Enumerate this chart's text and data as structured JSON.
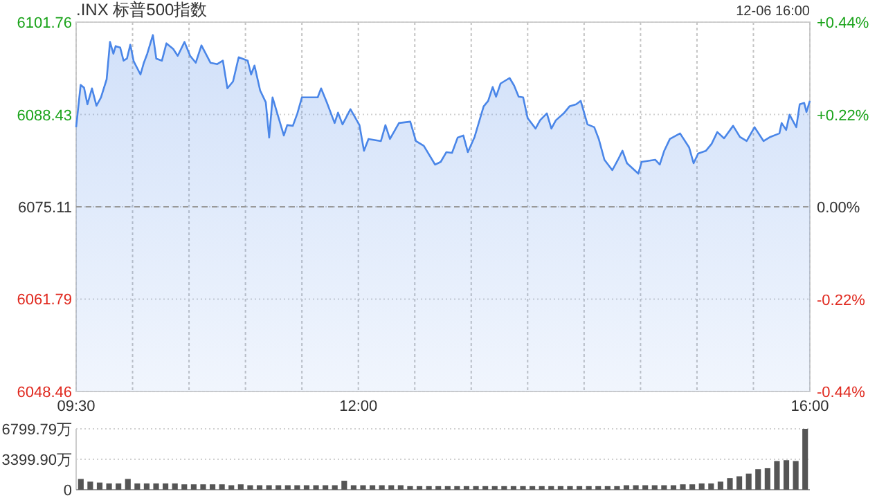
{
  "chart_data": [
    {
      "type": "area",
      "title": ".INX 标普500指数",
      "subtitle": "12-06 16:00",
      "x": [
        9.5,
        9.54,
        9.57,
        9.6,
        9.64,
        9.68,
        9.72,
        9.77,
        9.8,
        9.83,
        9.85,
        9.89,
        9.92,
        9.95,
        9.98,
        10.01,
        10.07,
        10.1,
        10.13,
        10.18,
        10.21,
        10.26,
        10.3,
        10.36,
        10.4,
        10.46,
        10.51,
        10.56,
        10.61,
        10.69,
        10.75,
        10.8,
        10.84,
        10.89,
        10.94,
        11.02,
        11.05,
        11.08,
        11.13,
        11.18,
        11.21,
        11.24,
        11.3,
        11.34,
        11.37,
        11.42,
        11.46,
        11.5,
        11.56,
        11.64,
        11.67,
        11.72,
        11.79,
        11.82,
        11.86,
        11.93,
        12.01,
        12.05,
        12.09,
        12.2,
        12.24,
        12.28,
        12.36,
        12.46,
        12.51,
        12.58,
        12.68,
        12.73,
        12.78,
        12.83,
        12.88,
        12.93,
        12.97,
        13.03,
        13.11,
        13.15,
        13.19,
        13.22,
        13.26,
        13.34,
        13.38,
        13.42,
        13.46,
        13.5,
        13.57,
        13.61,
        13.67,
        13.71,
        13.75,
        13.82,
        13.87,
        13.93,
        13.97,
        14.03,
        14.09,
        14.13,
        14.18,
        14.25,
        14.3,
        14.34,
        14.38,
        14.48,
        14.51,
        14.63,
        14.67,
        14.71,
        14.76,
        14.85,
        14.93,
        14.97,
        15.01,
        15.08,
        15.13,
        15.18,
        15.24,
        15.32,
        15.38,
        15.44,
        15.51,
        15.59,
        15.65,
        15.73,
        15.75,
        15.79,
        15.82,
        15.88,
        15.91,
        15.95,
        15.97,
        16.0
      ],
      "series": [
        {
          "color": "#4a86e8",
          "values": [
            6086.6,
            6092.7,
            6092.3,
            6089.9,
            6092.2,
            6089.7,
            6090.9,
            6093.5,
            6098.9,
            6097.2,
            6098.3,
            6098.1,
            6096.2,
            6096.5,
            6098.5,
            6096.1,
            6094.2,
            6095.9,
            6097.2,
            6099.9,
            6096.5,
            6096.2,
            6098.7,
            6097.9,
            6096.9,
            6098.9,
            6096.9,
            6095.9,
            6098.4,
            6095.9,
            6095.7,
            6096.2,
            6092.2,
            6093.2,
            6096.7,
            6096.2,
            6094.2,
            6095.5,
            6091.9,
            6090.2,
            6085.1,
            6090.9,
            6087.6,
            6085.4,
            6086.9,
            6086.8,
            6088.6,
            6090.9,
            6090.9,
            6090.9,
            6092.2,
            6090.2,
            6087.2,
            6088.7,
            6087.0,
            6089.2,
            6086.9,
            6083.2,
            6084.9,
            6084.6,
            6086.9,
            6084.9,
            6087.2,
            6087.4,
            6084.6,
            6083.9,
            6081.2,
            6081.6,
            6083.0,
            6082.9,
            6085.1,
            6085.4,
            6083.0,
            6085.2,
            6089.6,
            6090.4,
            6092.4,
            6091.0,
            6092.9,
            6093.7,
            6092.6,
            6091.0,
            6090.9,
            6087.9,
            6086.4,
            6087.6,
            6088.6,
            6086.4,
            6087.6,
            6088.6,
            6089.6,
            6089.9,
            6090.4,
            6087.0,
            6086.6,
            6084.9,
            6081.9,
            6080.4,
            6081.9,
            6083.2,
            6081.4,
            6079.9,
            6081.6,
            6081.9,
            6081.2,
            6083.2,
            6084.9,
            6085.7,
            6083.7,
            6081.4,
            6082.8,
            6083.2,
            6084.2,
            6085.9,
            6085.0,
            6086.8,
            6085.2,
            6084.6,
            6086.6,
            6084.6,
            6085.2,
            6085.7,
            6087.2,
            6086.2,
            6088.4,
            6086.6,
            6089.9,
            6090.1,
            6088.8,
            6090.4
          ]
        }
      ],
      "xlim": [
        9.5,
        16
      ],
      "xticks": [
        {
          "value": 9.5,
          "label": "09:30"
        },
        {
          "value": 10,
          "label": null
        },
        {
          "value": 10.5,
          "label": null
        },
        {
          "value": 11,
          "label": null
        },
        {
          "value": 11.5,
          "label": null
        },
        {
          "value": 12,
          "label": "12:00"
        },
        {
          "value": 12.5,
          "label": null
        },
        {
          "value": 13,
          "label": null
        },
        {
          "value": 13.5,
          "label": null
        },
        {
          "value": 14,
          "label": null
        },
        {
          "value": 14.5,
          "label": null
        },
        {
          "value": 15,
          "label": null
        },
        {
          "value": 15.5,
          "label": null
        },
        {
          "value": 16,
          "label": "16:00"
        }
      ],
      "ylim": [
        6048.46,
        6101.76
      ],
      "yticks": [
        6048.46,
        6061.79,
        6075.11,
        6088.43,
        6101.76
      ],
      "y2lim": [
        -0.44,
        0.44
      ],
      "y2ticks": [
        {
          "value": -0.44,
          "label": "-0.44%"
        },
        {
          "value": -0.22,
          "label": "-0.22%"
        },
        {
          "value": 0,
          "label": "0.00%"
        },
        {
          "value": 0.22,
          "label": "+0.22%"
        },
        {
          "value": 0.44,
          "label": "+0.44%"
        }
      ],
      "ref_lines": [
        {
          "axis": "y",
          "value": 6075.11,
          "color": "#999999",
          "line_style": "dashed"
        }
      ],
      "grid": true
    },
    {
      "type": "bar",
      "categories": [
        null,
        null,
        null,
        null,
        null,
        null,
        null,
        null,
        null,
        null,
        null,
        null,
        null,
        null,
        null,
        null,
        null,
        null,
        null,
        null,
        null,
        null,
        null,
        null,
        null,
        null,
        null,
        null,
        null,
        null,
        null,
        null,
        null,
        null,
        null,
        null,
        null,
        null,
        null,
        null,
        null,
        null,
        null,
        null,
        null,
        null,
        null,
        null,
        null,
        null,
        null,
        null,
        null,
        null,
        null,
        null,
        null,
        null,
        null,
        null,
        null,
        null,
        null,
        null,
        null,
        null,
        null,
        null,
        null,
        null,
        null,
        null,
        null,
        null,
        null,
        null,
        null,
        null
      ],
      "values": [
        1200,
        900,
        800,
        700,
        700,
        1200,
        700,
        700,
        700,
        700,
        700,
        600,
        600,
        600,
        600,
        600,
        500,
        600,
        500,
        500,
        500,
        500,
        500,
        500,
        500,
        500,
        500,
        500,
        1000,
        500,
        500,
        500,
        500,
        500,
        500,
        400,
        400,
        400,
        400,
        400,
        400,
        400,
        400,
        400,
        400,
        400,
        400,
        400,
        400,
        400,
        400,
        400,
        400,
        400,
        400,
        400,
        400,
        400,
        500,
        500,
        500,
        500,
        500,
        500,
        600,
        600,
        700,
        700,
        900,
        1300,
        1500,
        1800,
        2300,
        2400,
        3200,
        3300,
        3200,
        6799.79
      ],
      "color": "#555555",
      "ylim": [
        0,
        6799.79
      ],
      "yticks": [
        0,
        {
          "value": 3399.9,
          "label": "3399.90万"
        },
        {
          "value": 6799.79,
          "label": "6799.79万"
        }
      ],
      "grid": "y"
    }
  ]
}
